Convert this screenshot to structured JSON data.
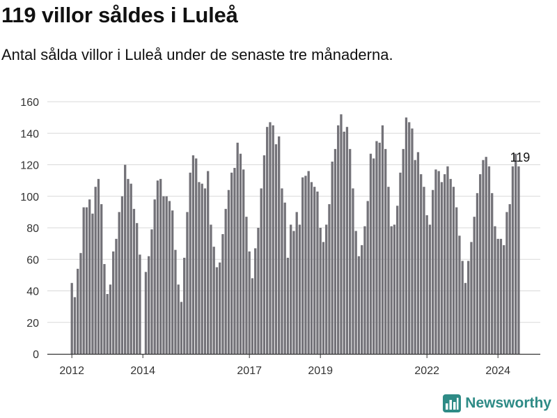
{
  "header": {
    "title": "119 villor såldes i Luleå",
    "subtitle": "Antal sålda villor i Luleå under de senaste tre månaderna."
  },
  "brand": {
    "name": "Newsworthy",
    "icon": "bar-chart-logo-icon",
    "color": "#2e8b86"
  },
  "colors": {
    "bar": "#737278",
    "highlight": "#1a9a8c",
    "grid": "#d9d9d9",
    "axis": "#333333"
  },
  "chart_data": {
    "type": "bar",
    "title": "119 villor såldes i Luleå",
    "xlabel": "",
    "ylabel": "",
    "ylim": [
      0,
      160
    ],
    "yticks": [
      0,
      20,
      40,
      60,
      80,
      100,
      120,
      140,
      160
    ],
    "xticks": [
      {
        "label": "2012",
        "index": 0
      },
      {
        "label": "2014",
        "index": 24
      },
      {
        "label": "2017",
        "index": 60
      },
      {
        "label": "2019",
        "index": 84
      },
      {
        "label": "2022",
        "index": 120
      },
      {
        "label": "2024",
        "index": 144
      }
    ],
    "grid": true,
    "highlight_index": 152,
    "annotation": {
      "text": "119",
      "index": 151
    },
    "values": [
      45,
      36,
      54,
      64,
      93,
      93,
      98,
      89,
      106,
      111,
      95,
      57,
      38,
      44,
      65,
      73,
      90,
      100,
      120,
      111,
      108,
      92,
      83,
      63,
      0,
      52,
      62,
      79,
      98,
      110,
      111,
      100,
      100,
      97,
      91,
      66,
      44,
      33,
      61,
      90,
      115,
      126,
      124,
      109,
      108,
      105,
      116,
      82,
      68,
      55,
      58,
      76,
      92,
      104,
      115,
      118,
      134,
      127,
      117,
      87,
      65,
      48,
      67,
      80,
      105,
      126,
      144,
      147,
      145,
      133,
      138,
      105,
      96,
      61,
      82,
      78,
      90,
      82,
      112,
      113,
      116,
      109,
      106,
      103,
      80,
      71,
      82,
      95,
      122,
      130,
      145,
      152,
      141,
      144,
      130,
      105,
      78,
      62,
      69,
      81,
      97,
      127,
      124,
      135,
      134,
      145,
      130,
      106,
      81,
      82,
      94,
      115,
      130,
      150,
      147,
      143,
      123,
      128,
      114,
      106,
      88,
      82,
      104,
      117,
      116,
      109,
      114,
      119,
      111,
      106,
      93,
      75,
      59,
      45,
      59,
      71,
      87,
      102,
      114,
      123,
      125,
      119,
      102,
      81,
      73,
      73,
      69,
      90,
      95,
      119,
      127,
      119
    ]
  }
}
